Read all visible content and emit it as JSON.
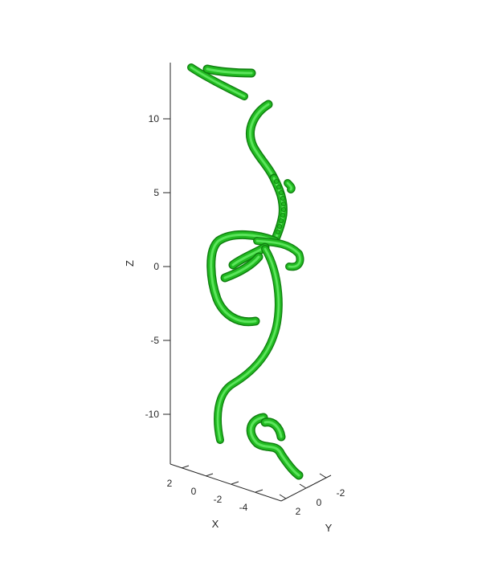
{
  "chart_data": {
    "type": "isosurface-3d",
    "title": "",
    "xlabel": "X",
    "ylabel": "Y",
    "zlabel": "Z",
    "x_ticks": [
      "2",
      "0",
      "-2",
      "-4"
    ],
    "y_ticks": [
      "2",
      "0",
      "-2"
    ],
    "z_ticks": [
      "10",
      "5",
      "0",
      "-5",
      "-10"
    ],
    "x_range": [
      -5,
      3
    ],
    "y_range": [
      -3,
      2.5
    ],
    "z_range": [
      -13,
      13.5
    ],
    "grid": false,
    "legend": "none",
    "surface_color": "#22bb22",
    "surface_highlight": "#6aef6a",
    "surface_shadow": "#0f7f0f"
  }
}
